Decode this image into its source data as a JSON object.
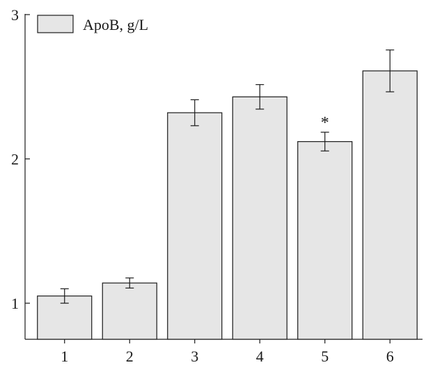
{
  "chart_data": {
    "type": "bar",
    "categories": [
      "1",
      "2",
      "3",
      "4",
      "5",
      "6"
    ],
    "series": [
      {
        "name": "ApoB, g/L",
        "values": [
          1.05,
          1.14,
          2.32,
          2.43,
          2.12,
          2.61
        ],
        "errors": [
          0.05,
          0.035,
          0.09,
          0.085,
          0.065,
          0.145
        ],
        "color": "#e6e6e6"
      }
    ],
    "annotations": [
      {
        "category": "5",
        "text": "*"
      }
    ],
    "ylim": [
      0.75,
      3.0
    ],
    "yticks": [
      1,
      2,
      3
    ],
    "xlabel": "",
    "ylabel": "",
    "title": "",
    "grid": false,
    "legend_position": "top-left"
  }
}
